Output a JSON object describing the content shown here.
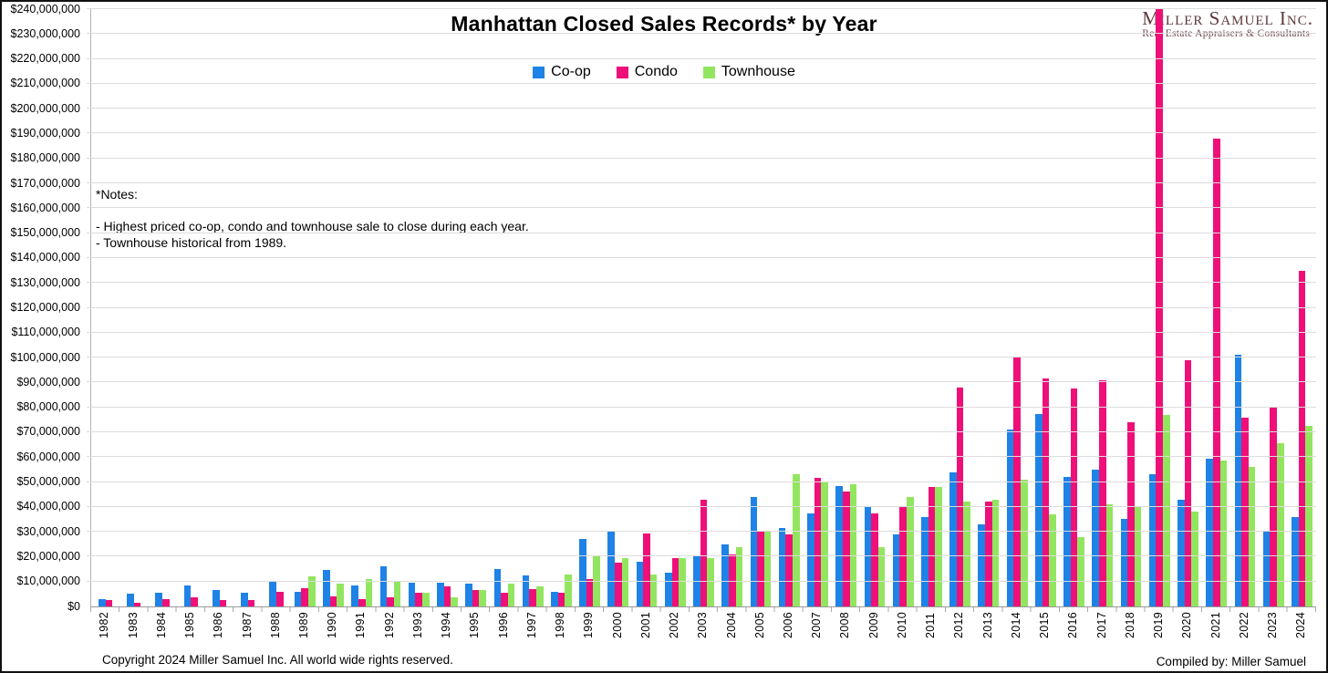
{
  "title": "Manhattan Closed Sales Records* by Year",
  "logo": {
    "name": "Miller Samuel Inc.",
    "tagline": "Real Estate Appraisers & Consultants"
  },
  "notes": {
    "title": "*Notes:",
    "line1": "- Highest priced co-op, condo and townhouse sale to close during each year.",
    "line2": "- Townhouse historical from 1989."
  },
  "footer": {
    "copyright": "Copyright 2024 Miller Samuel Inc.  All world wide rights reserved.",
    "compiled": "Compiled by: Miller Samuel"
  },
  "legend": [
    {
      "label": "Co-op",
      "color": "#1e82e6"
    },
    {
      "label": "Condo",
      "color": "#ee1078"
    },
    {
      "label": "Townhouse",
      "color": "#92e65f"
    }
  ],
  "chart_data": {
    "type": "bar",
    "title": "Manhattan Closed Sales Records* by Year",
    "xlabel": "",
    "ylabel": "",
    "value_unit": "millions_usd",
    "ylim": [
      0,
      240
    ],
    "ytick_step": 10,
    "grid": true,
    "legend_position": "top",
    "yticks": [
      "$240,000,000",
      "$230,000,000",
      "$220,000,000",
      "$210,000,000",
      "$200,000,000",
      "$190,000,000",
      "$180,000,000",
      "$170,000,000",
      "$160,000,000",
      "$150,000,000",
      "$140,000,000",
      "$130,000,000",
      "$120,000,000",
      "$110,000,000",
      "$100,000,000",
      "$90,000,000",
      "$80,000,000",
      "$70,000,000",
      "$60,000,000",
      "$50,000,000",
      "$40,000,000",
      "$30,000,000",
      "$20,000,000",
      "$10,000,000",
      "$0"
    ],
    "categories": [
      "1982",
      "1983",
      "1984",
      "1985",
      "1986",
      "1987",
      "1988",
      "1989",
      "1990",
      "1991",
      "1992",
      "1993",
      "1994",
      "1995",
      "1996",
      "1997",
      "1998",
      "1999",
      "2000",
      "2001",
      "2002",
      "2003",
      "2004",
      "2005",
      "2006",
      "2007",
      "2008",
      "2009",
      "2010",
      "2011",
      "2012",
      "2013",
      "2014",
      "2015",
      "2016",
      "2017",
      "2018",
      "2019",
      "2020",
      "2021",
      "2022",
      "2023",
      "2024"
    ],
    "series": [
      {
        "name": "Co-op",
        "color": "#1e82e6",
        "values": [
          3,
          5,
          5.5,
          8.5,
          6.5,
          5.5,
          10,
          6,
          14.5,
          8.5,
          16,
          9.5,
          9.5,
          9,
          15,
          12.5,
          6,
          27,
          30,
          18,
          13.5,
          20,
          25,
          44,
          31.5,
          37.5,
          48.5,
          40,
          29,
          36,
          54,
          33,
          71,
          77.5,
          52,
          55,
          35,
          53,
          43,
          59.5,
          101,
          30,
          36
        ]
      },
      {
        "name": "Condo",
        "color": "#ee1078",
        "values": [
          2.5,
          1.5,
          3,
          3.5,
          2.5,
          2.5,
          6,
          7.5,
          4,
          3,
          3.5,
          5.5,
          8,
          6.5,
          5.5,
          7,
          5.5,
          11,
          17.5,
          29.5,
          19.5,
          43,
          21,
          30.5,
          29,
          51.5,
          46,
          37.5,
          40,
          48,
          88,
          42,
          100.5,
          91.5,
          87.5,
          91,
          74,
          240,
          99,
          188,
          76,
          80,
          135
        ]
      },
      {
        "name": "Townhouse",
        "color": "#92e65f",
        "values": [
          null,
          null,
          null,
          null,
          null,
          null,
          null,
          12,
          9,
          11,
          10,
          5.5,
          3.5,
          6.5,
          9,
          8,
          13,
          20,
          19.5,
          13,
          19.5,
          19.5,
          24,
          30,
          53,
          50,
          49,
          24,
          44,
          48,
          42,
          43,
          51,
          37,
          28,
          41,
          40,
          77,
          38,
          58.5,
          56,
          65.5,
          72.5
        ]
      }
    ]
  }
}
